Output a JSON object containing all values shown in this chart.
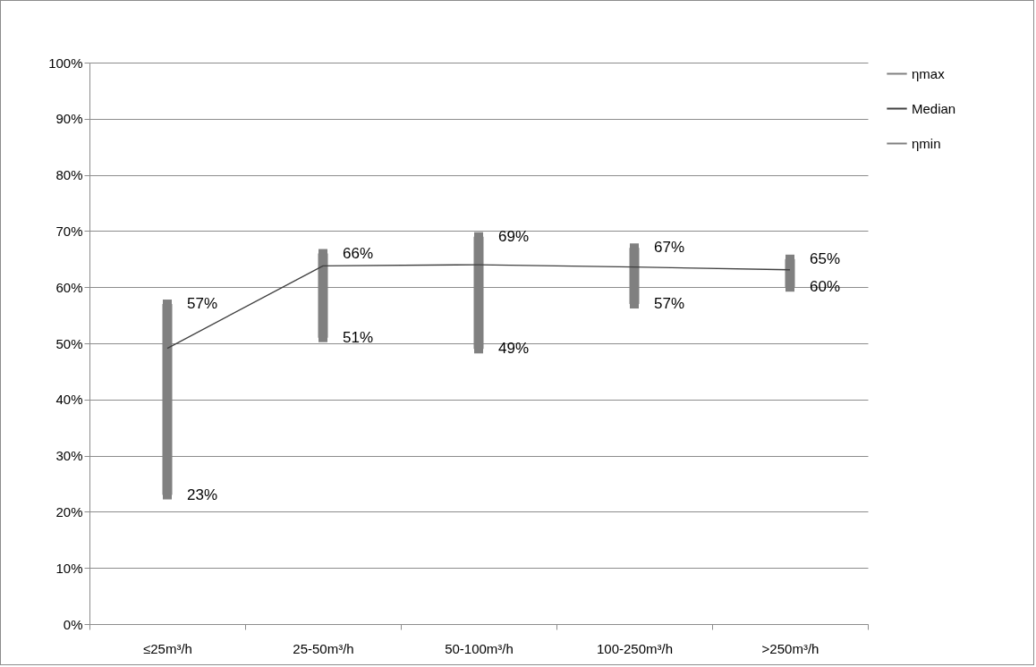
{
  "chart_data": {
    "type": "line",
    "categories": [
      "≤25m³/h",
      "25-50m³/h",
      "50-100m³/h",
      "100-250m³/h",
      ">250m³/h"
    ],
    "series": [
      {
        "name": "ηmax",
        "type": "scatter",
        "marker": "square",
        "color": "#808080",
        "values": [
          57,
          66,
          69,
          67,
          65
        ],
        "value_labels": [
          "57%",
          "66%",
          "69%",
          "67%",
          "65%"
        ]
      },
      {
        "type": "bar",
        "color": "#808080",
        "base": [
          23,
          51,
          49,
          57,
          60
        ],
        "values": [
          34,
          15,
          20,
          10,
          5
        ]
      },
      {
        "name": "Median",
        "color": "#404040",
        "marker": "none",
        "values": [
          49.1,
          63.8,
          64.0,
          63.6,
          63.1
        ]
      },
      {
        "name": "ηmin",
        "type": "scatter",
        "marker": "square",
        "color": "#808080",
        "values": [
          23,
          51,
          49,
          57,
          60
        ],
        "value_labels": [
          "23%",
          "51%",
          "49%",
          "57%",
          "60%"
        ]
      }
    ],
    "ylim": [
      0,
      100
    ],
    "yticks": [
      {
        "value": 0,
        "label": "0%"
      },
      {
        "value": 10,
        "label": "10%"
      },
      {
        "value": 20,
        "label": "20%"
      },
      {
        "value": 30,
        "label": "30%"
      },
      {
        "value": 40,
        "label": "40%"
      },
      {
        "value": 50,
        "label": "50%"
      },
      {
        "value": 60,
        "label": "60%"
      },
      {
        "value": 70,
        "label": "70%"
      },
      {
        "value": 80,
        "label": "80%"
      },
      {
        "value": 90,
        "label": "90%"
      },
      {
        "value": 100,
        "label": "100%"
      }
    ],
    "grid": "y",
    "legend": "right"
  }
}
